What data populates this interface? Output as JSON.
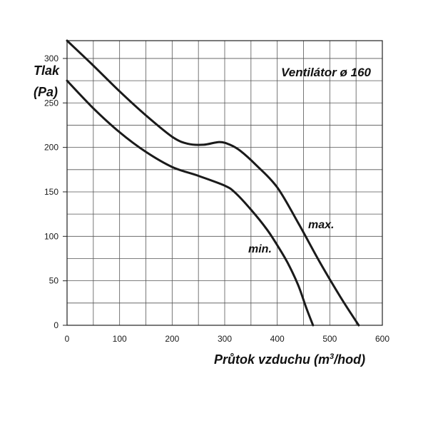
{
  "chart_data": {
    "type": "line",
    "title": "Ventilátor ø 160",
    "ylabel_line1": "Tlak",
    "ylabel_line2": "(Pa)",
    "xlabel_main": "Průtok vzduchu (m",
    "xlabel_sup": "3",
    "xlabel_tail": "/hod)",
    "xlim": [
      0,
      600
    ],
    "ylim": [
      0,
      320
    ],
    "xticks": [
      0,
      100,
      200,
      300,
      400,
      500,
      600
    ],
    "yticks": [
      0,
      50,
      100,
      150,
      200,
      250,
      300
    ],
    "grid": true,
    "grid_x_step": 50,
    "grid_y_step": 25,
    "line_color": "#1a1a1a",
    "grid_color": "#555555",
    "series": [
      {
        "name": "max.",
        "x": [
          0,
          50,
          100,
          150,
          200,
          230,
          260,
          290,
          310,
          330,
          360,
          400,
          440,
          480,
          520,
          555
        ],
        "y": [
          320,
          292,
          263,
          236,
          212,
          204,
          203,
          206,
          203,
          196,
          180,
          155,
          115,
          72,
          32,
          0
        ]
      },
      {
        "name": "min.",
        "x": [
          0,
          50,
          100,
          150,
          200,
          250,
          300,
          320,
          350,
          380,
          400,
          420,
          440,
          455,
          468
        ],
        "y": [
          275,
          244,
          217,
          195,
          178,
          168,
          157,
          149,
          130,
          108,
          90,
          70,
          45,
          20,
          0
        ]
      }
    ]
  }
}
